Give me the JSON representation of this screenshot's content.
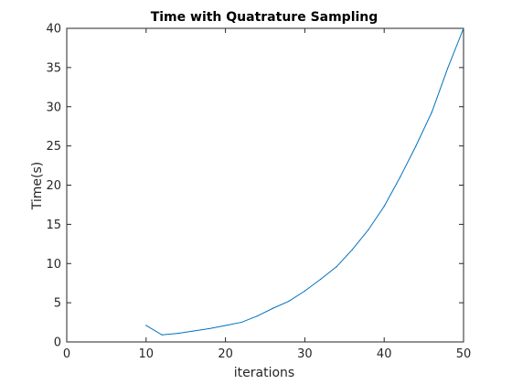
{
  "chart_data": {
    "type": "line",
    "title": "Time with Quatrature Sampling",
    "xlabel": "iterations",
    "ylabel": "Time(s)",
    "xlim": [
      0,
      50
    ],
    "ylim": [
      0,
      40
    ],
    "xticks": [
      0,
      10,
      20,
      30,
      40,
      50
    ],
    "yticks": [
      0,
      5,
      10,
      15,
      20,
      25,
      30,
      35,
      40
    ],
    "grid": false,
    "series": [
      {
        "color": "#0072BD",
        "x": [
          10,
          12,
          14,
          16,
          18,
          20,
          22,
          24,
          26,
          28,
          30,
          32,
          34,
          36,
          38,
          40,
          42,
          44,
          46,
          48,
          50
        ],
        "y": [
          2.1,
          0.9,
          1.1,
          1.4,
          1.7,
          2.1,
          2.5,
          3.3,
          4.3,
          5.2,
          6.5,
          8.0,
          9.6,
          11.8,
          14.3,
          17.3,
          21.0,
          25.0,
          29.3,
          34.9,
          40.0
        ]
      }
    ]
  }
}
